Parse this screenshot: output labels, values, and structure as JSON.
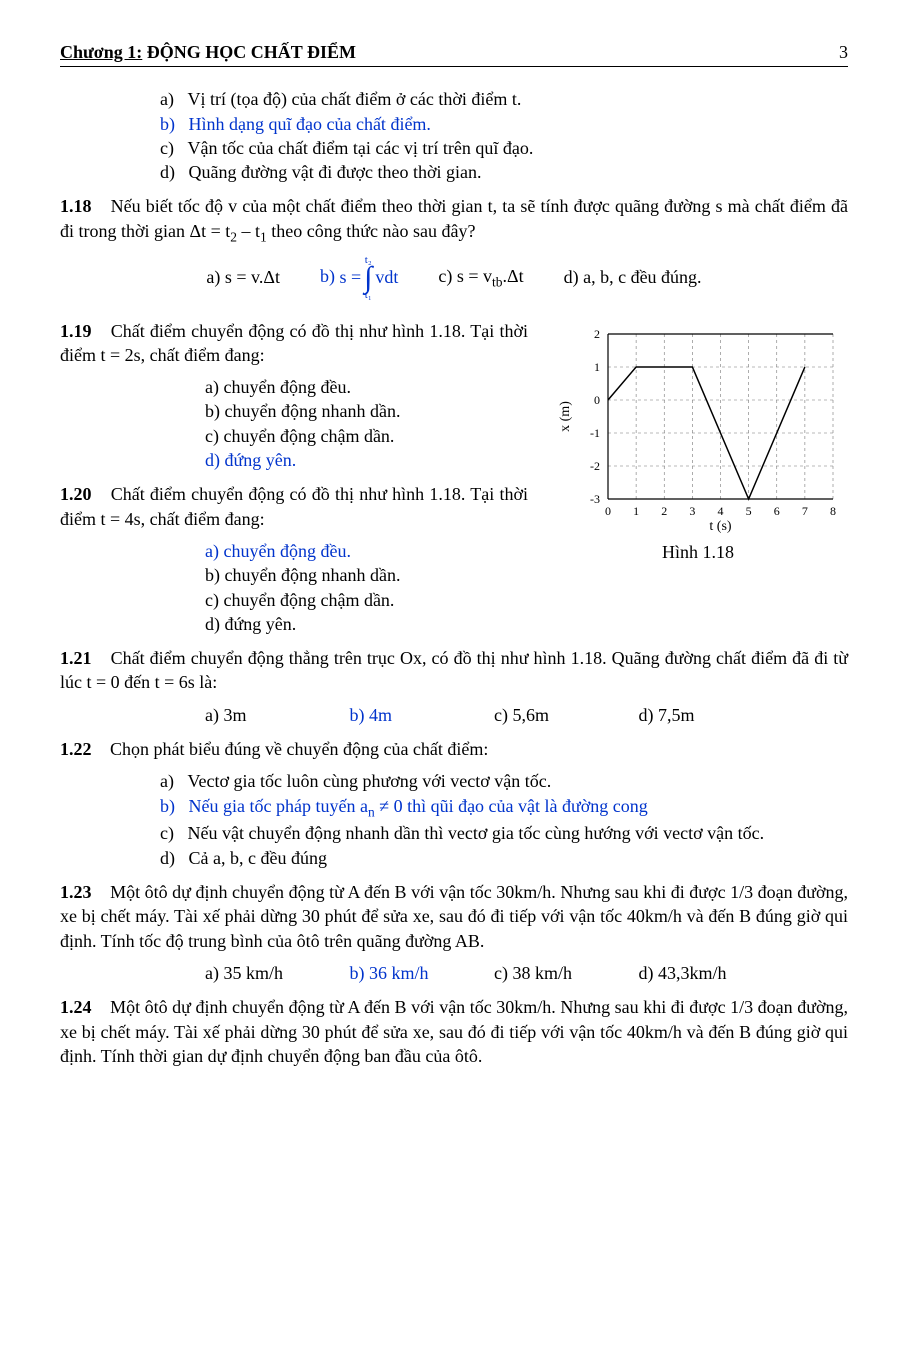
{
  "header": {
    "chapter_prefix": "Chương 1:",
    "chapter_title": " ĐỘNG HỌC CHẤT ĐIỂM",
    "page_number": "3"
  },
  "intro_opts": {
    "a": "Vị trí (tọa độ) của chất điểm ở các thời điểm t.",
    "b": "Hình dạng quĩ đạo của chất điểm.",
    "c": "Vận tốc của chất điểm tại các vị trí trên quĩ đạo.",
    "d": "Quãng đường vật đi được theo thời gian."
  },
  "q118": {
    "num": "1.18",
    "text": "Nếu biết tốc độ v của một chất điểm theo thời gian t, ta sẽ tính được quãng đường s mà chất điểm đã đi trong thời gian Δt = t",
    "text2": " – t",
    "text3": " theo công thức nào sau đây?",
    "sub2": "2",
    "sub1": "1",
    "a": "a) s = v.Δt",
    "b_lbl": "b)",
    "b_lhs": "s =",
    "b_int_top": "t₂",
    "b_int_bot": "t₁",
    "b_rhs": "vdt",
    "c_pre": "c) s = v",
    "c_sub": "tb",
    "c_post": ".Δt",
    "d": "d) a, b, c đều đúng."
  },
  "q119": {
    "num": "1.19",
    "text": "Chất điểm chuyển động có đồ thị như hình 1.18. Tại thời điểm t = 2s, chất điểm đang:",
    "a": "a) chuyển động đều.",
    "b": "b) chuyển động nhanh dần.",
    "c": "c) chuyển động chậm dần.",
    "d": "d) đứng yên."
  },
  "q120": {
    "num": "1.20",
    "text": "Chất điểm chuyển động có đồ thị như hình 1.18. Tại thời điểm t = 4s, chất điểm đang:",
    "a": "a) chuyển động đều.",
    "b": "b) chuyển động nhanh dần.",
    "c": "c) chuyển động chậm dần.",
    "d": "d) đứng yên."
  },
  "figure": {
    "caption": "Hình 1.18",
    "ylabel": "x (m)",
    "xlabel": "t (s)",
    "xticks": [
      "0",
      "1",
      "2",
      "3",
      "4",
      "5",
      "6",
      "7",
      "8"
    ],
    "yticks": [
      "-3",
      "-2",
      "-1",
      "0",
      "1",
      "2"
    ],
    "points": [
      [
        0,
        0
      ],
      [
        1,
        1
      ],
      [
        3,
        1
      ],
      [
        5,
        -3
      ],
      [
        7,
        1
      ]
    ],
    "xlim": [
      0,
      8
    ],
    "ylim": [
      -3,
      2
    ],
    "bg": "#ffffff",
    "axis_color": "#000000",
    "grid_color": "#777777",
    "line_color": "#000000",
    "line_width": 1.5,
    "dash": "3,3",
    "tick_fontsize": 12,
    "label_fontsize": 14
  },
  "q121": {
    "num": "1.21",
    "text": "Chất điểm chuyển động thẳng trên trục Ox, có đồ thị như hình 1.18. Quãng đường chất điểm đã đi từ lúc t = 0 đến t = 6s là:",
    "a": "a) 3m",
    "b": "b) 4m",
    "c": "c) 5,6m",
    "d": "d) 7,5m"
  },
  "q122": {
    "num": "1.22",
    "text": "Chọn phát biểu đúng về chuyển động của chất điểm:",
    "a": "Vectơ gia tốc luôn cùng phương với vectơ vận tốc.",
    "b_pre": "Nếu gia tốc pháp tuyến a",
    "b_sub": "n",
    "b_post": " ≠ 0 thì qũi đạo của vật là đường cong",
    "c": "Nếu vật chuyển động nhanh dần thì vectơ gia tốc cùng hướng với vectơ vận tốc.",
    "d": "Cả a, b, c đều đúng"
  },
  "q123": {
    "num": "1.23",
    "text": "Một ôtô dự định chuyển động từ A đến B với vận tốc 30km/h. Nhưng sau khi đi được 1/3 đoạn đường, xe bị chết máy. Tài xế phải dừng 30 phút để sửa xe, sau đó đi tiếp với vận tốc 40km/h và đến B đúng giờ qui định. Tính tốc độ trung bình của ôtô trên quãng đường AB.",
    "a": "a) 35 km/h",
    "b": "b) 36 km/h",
    "c": "c) 38 km/h",
    "d": "d) 43,3km/h"
  },
  "q124": {
    "num": "1.24",
    "text": "Một ôtô dự định chuyển động từ A đến B với vận tốc 30km/h. Nhưng sau khi đi được 1/3 đoạn đường, xe bị chết máy. Tài xế phải dừng 30 phút để sửa xe, sau đó đi tiếp với vận tốc 40km/h và đến B đúng giờ qui định. Tính thời gian dự định chuyển động ban đầu của ôtô."
  }
}
